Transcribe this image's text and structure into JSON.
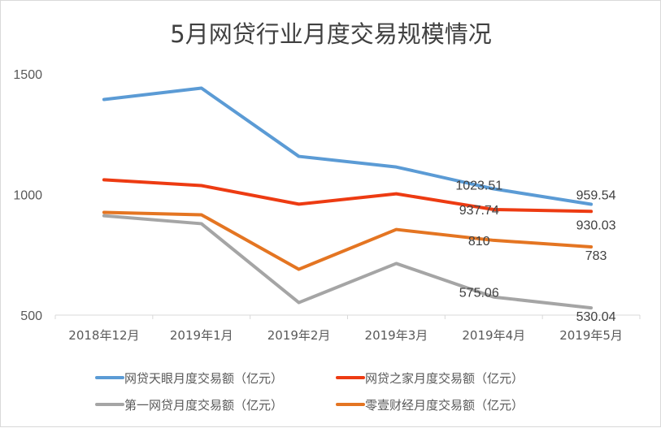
{
  "chart_data": {
    "type": "line",
    "title": "5月网贷行业月度交易规模情况",
    "xlabel": "",
    "ylabel": "",
    "ylim": [
      500,
      1500
    ],
    "yticks": [
      500,
      1000,
      1500
    ],
    "grid": false,
    "legend_position": "bottom",
    "categories": [
      "2018年12月",
      "2019年1月",
      "2019年2月",
      "2019年3月",
      "2019年4月",
      "2019年5月"
    ],
    "series": [
      {
        "name": "网贷天眼月度交易额（亿元）",
        "color": "#5b9bd5",
        "values": [
          1394,
          1441,
          1158,
          1114,
          1023.51,
          959.54
        ],
        "labels": [
          null,
          null,
          null,
          null,
          "1023.51",
          "959.54"
        ]
      },
      {
        "name": "网贷之家月度交易额（亿元）",
        "color": "#ed3b12",
        "values": [
          1061,
          1037,
          960,
          1003,
          937.74,
          930.03
        ],
        "labels": [
          null,
          null,
          null,
          null,
          "937.74",
          "930.03"
        ]
      },
      {
        "name": "第一网贷月度交易额（亿元）",
        "color": "#a5a5a5",
        "values": [
          912,
          879,
          552,
          714,
          575.06,
          530.04
        ],
        "labels": [
          null,
          null,
          null,
          null,
          "575.06",
          "530.04"
        ]
      },
      {
        "name": "零壹财经月度交易额（亿元）",
        "color": "#e47522",
        "values": [
          926,
          916,
          690,
          855,
          810,
          783
        ],
        "labels": [
          null,
          null,
          null,
          null,
          "810",
          "783"
        ]
      }
    ]
  }
}
